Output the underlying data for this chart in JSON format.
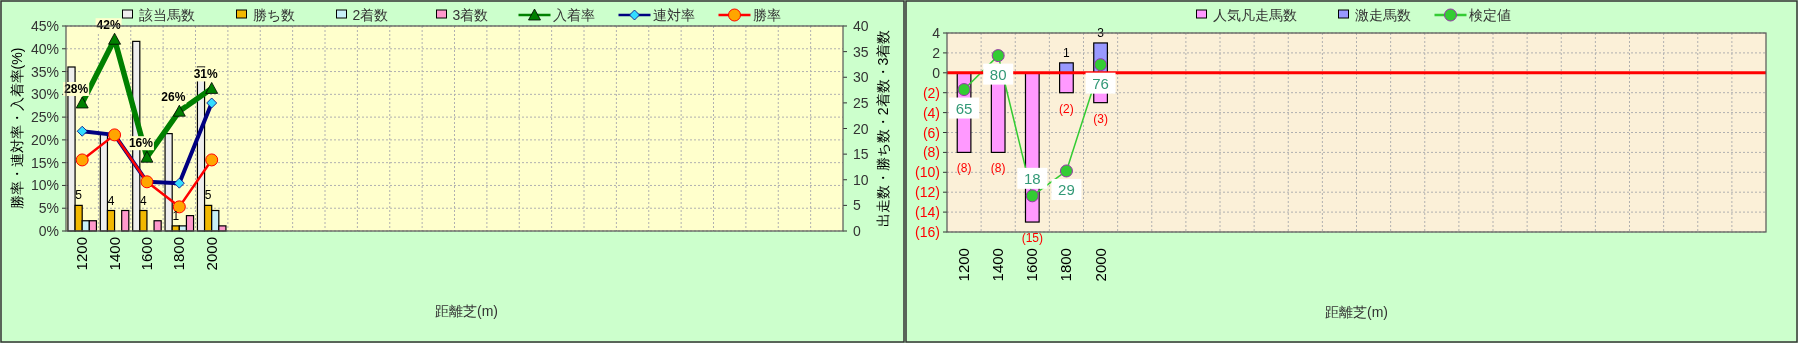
{
  "chart_data": [
    {
      "type": "bar",
      "xlabel": "距離芝(m)",
      "ylabel": "勝率・連対率・入着率(%)",
      "y2label": "出走数・勝ち数・2着数・3着数",
      "categories": [
        "1200",
        "1400",
        "1600",
        "1800",
        "2000",
        null,
        null,
        null,
        null,
        null,
        null,
        null,
        null,
        null,
        null,
        null,
        null,
        null,
        null,
        null,
        null,
        null,
        null,
        null
      ],
      "ylim": [
        0,
        45
      ],
      "yticks": [
        {
          "value": 0,
          "label": "0%"
        },
        {
          "value": 5,
          "label": "5%"
        },
        {
          "value": 10,
          "label": "10%"
        },
        {
          "value": 15,
          "label": "15%"
        },
        {
          "value": 20,
          "label": "20%"
        },
        {
          "value": 25,
          "label": "25%"
        },
        {
          "value": 30,
          "label": "30%"
        },
        {
          "value": 35,
          "label": "35%"
        },
        {
          "value": 40,
          "label": "40%"
        },
        {
          "value": 45,
          "label": "45%"
        }
      ],
      "y2lim": [
        0,
        40
      ],
      "y2ticks": [
        0,
        5,
        10,
        15,
        20,
        25,
        30,
        35,
        40
      ],
      "grid": true,
      "legend": "top",
      "series": [
        {
          "name": "該当馬数",
          "type": "bar",
          "axis": "y2",
          "color": "#eeeeee",
          "values": [
            32,
            19,
            37,
            19,
            32,
            null,
            null,
            null,
            null,
            null,
            null,
            null,
            null,
            null,
            null,
            null,
            null,
            null,
            null,
            null,
            null,
            null,
            null,
            null
          ]
        },
        {
          "name": "勝ち数",
          "type": "bar",
          "axis": "y2",
          "color": "#f2b800",
          "values": [
            5,
            4,
            4,
            1,
            5,
            null,
            null,
            null,
            null,
            null,
            null,
            null,
            null,
            null,
            null,
            null,
            null,
            null,
            null,
            null,
            null,
            null,
            null,
            null
          ],
          "value_labels": [
            "5",
            "4",
            "4",
            "1",
            "5",
            null,
            null,
            null,
            null,
            null,
            null,
            null,
            null,
            null,
            null,
            null,
            null,
            null,
            null,
            null,
            null,
            null,
            null,
            null
          ]
        },
        {
          "name": "2着数",
          "type": "bar",
          "axis": "y2",
          "color": "#c8f0f8",
          "values": [
            2,
            0,
            0,
            1,
            4,
            null,
            null,
            null,
            null,
            null,
            null,
            null,
            null,
            null,
            null,
            null,
            null,
            null,
            null,
            null,
            null,
            null,
            null,
            null
          ]
        },
        {
          "name": "3着数",
          "type": "bar",
          "axis": "y2",
          "color": "#ff99cc",
          "values": [
            2,
            4,
            2,
            3,
            1,
            null,
            null,
            null,
            null,
            null,
            null,
            null,
            null,
            null,
            null,
            null,
            null,
            null,
            null,
            null,
            null,
            null,
            null,
            null
          ]
        },
        {
          "name": "入着率",
          "type": "line",
          "color": "#008000",
          "marker": "triangle",
          "values": [
            28.1,
            42.1,
            16.2,
            26.3,
            31.3,
            null,
            null,
            null,
            null,
            null,
            null,
            null,
            null,
            null,
            null,
            null,
            null,
            null,
            null,
            null,
            null,
            null,
            null,
            null
          ],
          "value_labels": [
            "28%",
            "42%",
            "16%",
            "26%",
            "31%",
            null,
            null,
            null,
            null,
            null,
            null,
            null,
            null,
            null,
            null,
            null,
            null,
            null,
            null,
            null,
            null,
            null,
            null,
            null
          ]
        },
        {
          "name": "連対率",
          "type": "line",
          "color": "#000080",
          "marker": "diamond",
          "values": [
            21.9,
            21.1,
            10.8,
            10.5,
            28.1,
            null,
            null,
            null,
            null,
            null,
            null,
            null,
            null,
            null,
            null,
            null,
            null,
            null,
            null,
            null,
            null,
            null,
            null,
            null
          ]
        },
        {
          "name": "勝率",
          "type": "line",
          "color": "#ff0000",
          "marker": "circle",
          "values": [
            15.6,
            21.1,
            10.8,
            5.3,
            15.6,
            null,
            null,
            null,
            null,
            null,
            null,
            null,
            null,
            null,
            null,
            null,
            null,
            null,
            null,
            null,
            null,
            null,
            null,
            null
          ]
        }
      ]
    },
    {
      "type": "bar",
      "xlabel": "距離芝(m)",
      "categories": [
        "1200",
        "1400",
        "1600",
        "1800",
        "2000",
        null,
        null,
        null,
        null,
        null,
        null,
        null,
        null,
        null,
        null,
        null,
        null,
        null,
        null,
        null,
        null,
        null,
        null,
        null
      ],
      "ylim": [
        -16,
        4
      ],
      "yticks": [
        {
          "value": 4,
          "label": "4"
        },
        {
          "value": 2,
          "label": "2"
        },
        {
          "value": 0,
          "label": "0"
        },
        {
          "value": -2,
          "label": "(2)"
        },
        {
          "value": -4,
          "label": "(4)"
        },
        {
          "value": -6,
          "label": "(6)"
        },
        {
          "value": -8,
          "label": "(8)"
        },
        {
          "value": -10,
          "label": "(10)"
        },
        {
          "value": -12,
          "label": "(12)"
        },
        {
          "value": -14,
          "label": "(14)"
        },
        {
          "value": -16,
          "label": "(16)"
        }
      ],
      "y2lim": [
        2,
        90
      ],
      "grid": true,
      "legend": "top",
      "stacked": true,
      "ref_lines": [
        {
          "axis": "y",
          "value": 0,
          "color": "#ff0000"
        }
      ],
      "series": [
        {
          "name": "人気凡走馬数",
          "type": "bar",
          "color": "#ff99ff",
          "values": [
            -8,
            -8,
            -15,
            -2,
            -3,
            null,
            null,
            null,
            null,
            null,
            null,
            null,
            null,
            null,
            null,
            null,
            null,
            null,
            null,
            null,
            null,
            null,
            null,
            null
          ],
          "value_labels": [
            "(8)",
            "(8)",
            "(15)",
            "(2)",
            "(3)",
            null,
            null,
            null,
            null,
            null,
            null,
            null,
            null,
            null,
            null,
            null,
            null,
            null,
            null,
            null,
            null,
            null,
            null,
            null
          ]
        },
        {
          "name": "激走馬数",
          "type": "bar",
          "color": "#9999ff",
          "values": [
            0,
            0,
            0,
            1,
            3,
            null,
            null,
            null,
            null,
            null,
            null,
            null,
            null,
            null,
            null,
            null,
            null,
            null,
            null,
            null,
            null,
            null,
            null,
            null
          ],
          "value_labels": [
            null,
            null,
            null,
            "1",
            "3",
            null,
            null,
            null,
            null,
            null,
            null,
            null,
            null,
            null,
            null,
            null,
            null,
            null,
            null,
            null,
            null,
            null,
            null,
            null
          ]
        },
        {
          "name": "検定値",
          "type": "line",
          "axis": "y2",
          "color": "#33cc33",
          "marker": "circle",
          "values": [
            65,
            80,
            18,
            29,
            76,
            null,
            null,
            null,
            null,
            null,
            null,
            null,
            null,
            null,
            null,
            null,
            null,
            null,
            null,
            null,
            null,
            null,
            null,
            null
          ],
          "value_labels": [
            "65",
            "80",
            "18",
            "29",
            "76",
            null,
            null,
            null,
            null,
            null,
            null,
            null,
            null,
            null,
            null,
            null,
            null,
            null,
            null,
            null,
            null,
            null,
            null,
            null
          ]
        }
      ]
    }
  ]
}
